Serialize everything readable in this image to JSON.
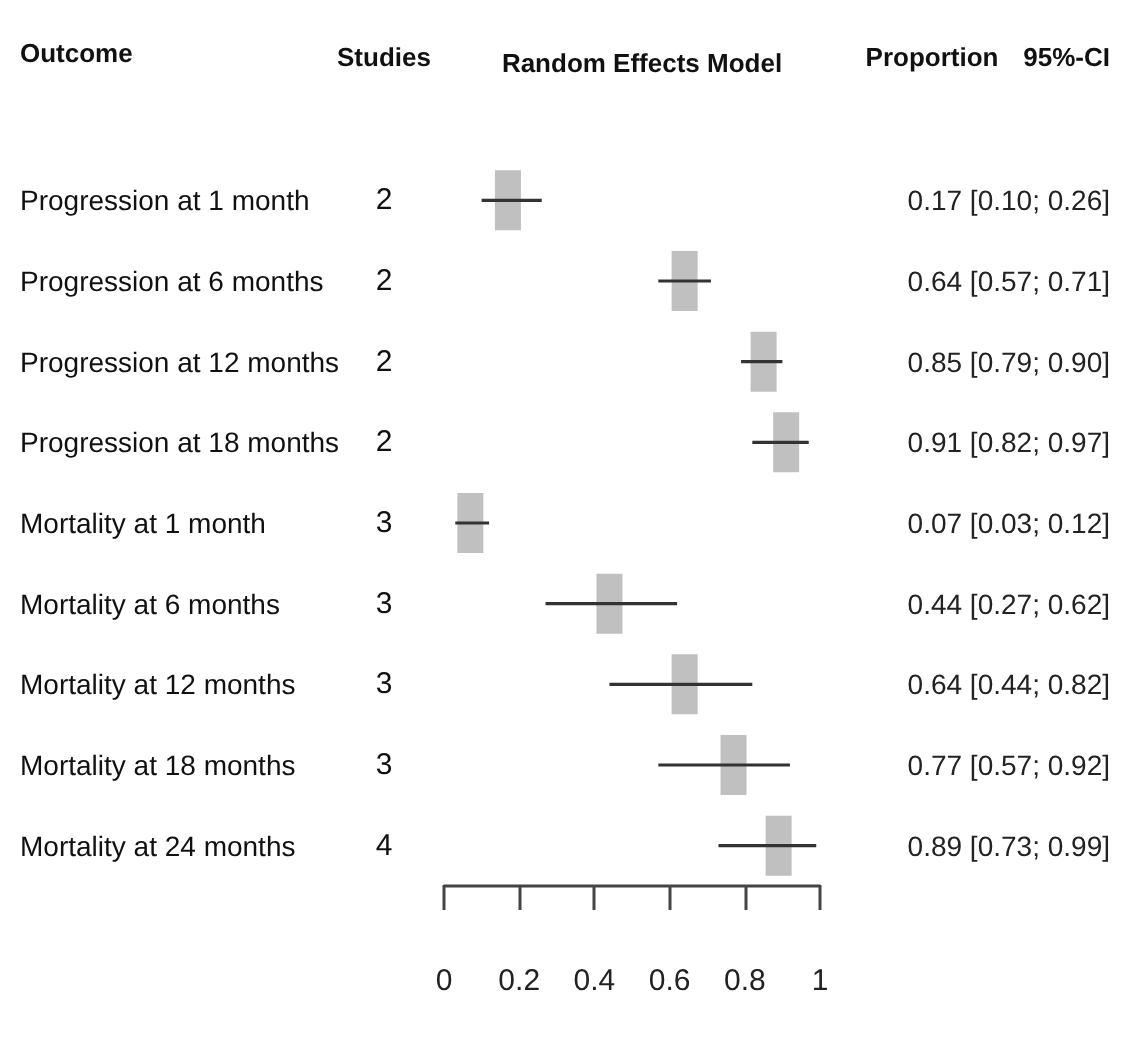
{
  "chart_data": {
    "type": "scatter",
    "orientation": "horizontal",
    "title": "Random Effects Model",
    "ylabel": "Outcome",
    "categories": [
      "Progression at 1 month",
      "Progression at 6 months",
      "Progression at 12 months",
      "Progression at 18 months",
      "Mortality at 1 month",
      "Mortality at 6 months",
      "Mortality at 12 months",
      "Mortality at 18 months",
      "Mortality at 24 months"
    ],
    "values": [
      0.17,
      0.64,
      0.85,
      0.91,
      0.07,
      0.44,
      0.64,
      0.77,
      0.89
    ],
    "errors": [
      [
        0.1,
        0.26
      ],
      [
        0.57,
        0.71
      ],
      [
        0.79,
        0.9
      ],
      [
        0.82,
        0.97
      ],
      [
        0.03,
        0.12
      ],
      [
        0.27,
        0.62
      ],
      [
        0.44,
        0.82
      ],
      [
        0.57,
        0.92
      ],
      [
        0.73,
        0.99
      ]
    ],
    "value_labels": [
      "0.17 [0.10; 0.26]",
      "0.64 [0.57; 0.71]",
      "0.85 [0.79; 0.90]",
      "0.91 [0.82; 0.97]",
      "0.07 [0.03; 0.12]",
      "0.44 [0.27; 0.62]",
      "0.64 [0.44; 0.82]",
      "0.77 [0.57; 0.92]",
      "0.89 [0.73; 0.99]"
    ],
    "color": "#c0c0c0",
    "marker": "square",
    "xlim": [
      0,
      1
    ],
    "xticks": [
      0,
      0.2,
      0.4,
      0.6,
      0.8,
      1
    ],
    "annotations": [
      "Studies",
      "Proportion",
      "95%-CI",
      "2",
      "2",
      "2",
      "2",
      "3",
      "3",
      "3",
      "3",
      "4"
    ]
  }
}
